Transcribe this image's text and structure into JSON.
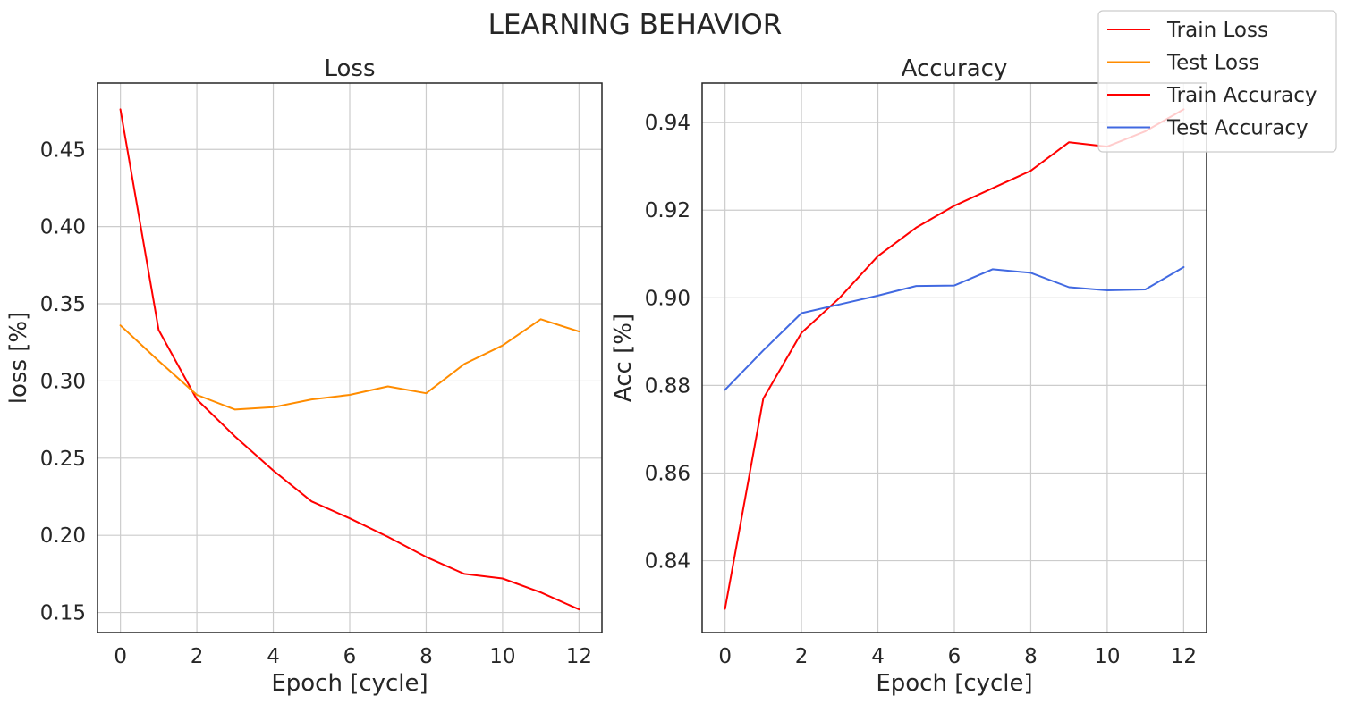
{
  "figure": {
    "suptitle": "LEARNING BEHAVIOR",
    "legend_placement": "upper-right",
    "legend": [
      {
        "label": "Train Loss",
        "color": "#ff0000"
      },
      {
        "label": "Test Loss",
        "color": "#ff8c00"
      },
      {
        "label": "Train Accuracy",
        "color": "#ff0000"
      },
      {
        "label": "Test Accuracy",
        "color": "#4169e1"
      }
    ]
  },
  "chart_data": [
    {
      "type": "line",
      "title": "Loss",
      "xlabel": "Epoch [cycle]",
      "ylabel": "loss [%]",
      "grid": true,
      "xlim": [
        -0.6,
        12.6
      ],
      "ylim": [
        0.137,
        0.493
      ],
      "xticks": [
        0,
        2,
        4,
        6,
        8,
        10,
        12
      ],
      "yticks": [
        0.15,
        0.2,
        0.25,
        0.3,
        0.35,
        0.4,
        0.45
      ],
      "ytick_labels": [
        "0.15",
        "0.20",
        "0.25",
        "0.30",
        "0.35",
        "0.40",
        "0.45"
      ],
      "x": [
        0,
        1,
        2,
        3,
        4,
        5,
        6,
        7,
        8,
        9,
        10,
        11,
        12
      ],
      "series": [
        {
          "name": "Train Loss",
          "color": "#ff0000",
          "values": [
            0.476,
            0.333,
            0.288,
            0.264,
            0.242,
            0.222,
            0.211,
            0.199,
            0.186,
            0.175,
            0.172,
            0.163,
            0.152
          ]
        },
        {
          "name": "Test Loss",
          "color": "#ff8c00",
          "values": [
            0.336,
            0.313,
            0.291,
            0.2815,
            0.283,
            0.288,
            0.291,
            0.2965,
            0.292,
            0.311,
            0.323,
            0.34,
            0.332
          ]
        }
      ]
    },
    {
      "type": "line",
      "title": "Accuracy",
      "xlabel": "Epoch [cycle]",
      "ylabel": "Acc [%]",
      "grid": true,
      "xlim": [
        -0.6,
        12.6
      ],
      "ylim": [
        0.8236,
        0.949
      ],
      "xticks": [
        0,
        2,
        4,
        6,
        8,
        10,
        12
      ],
      "yticks": [
        0.84,
        0.86,
        0.88,
        0.9,
        0.92,
        0.94
      ],
      "ytick_labels": [
        "0.84",
        "0.86",
        "0.88",
        "0.90",
        "0.92",
        "0.94"
      ],
      "x": [
        0,
        1,
        2,
        3,
        4,
        5,
        6,
        7,
        8,
        9,
        10,
        11,
        12
      ],
      "series": [
        {
          "name": "Train Accuracy",
          "color": "#ff0000",
          "values": [
            0.829,
            0.877,
            0.892,
            0.9,
            0.9095,
            0.916,
            0.921,
            0.925,
            0.929,
            0.9355,
            0.9345,
            0.938,
            0.943
          ]
        },
        {
          "name": "Test Accuracy",
          "color": "#4169e1",
          "values": [
            0.879,
            0.888,
            0.8965,
            0.8985,
            0.9005,
            0.9027,
            0.9028,
            0.9065,
            0.9057,
            0.9024,
            0.9017,
            0.9019,
            0.907
          ]
        }
      ]
    }
  ]
}
